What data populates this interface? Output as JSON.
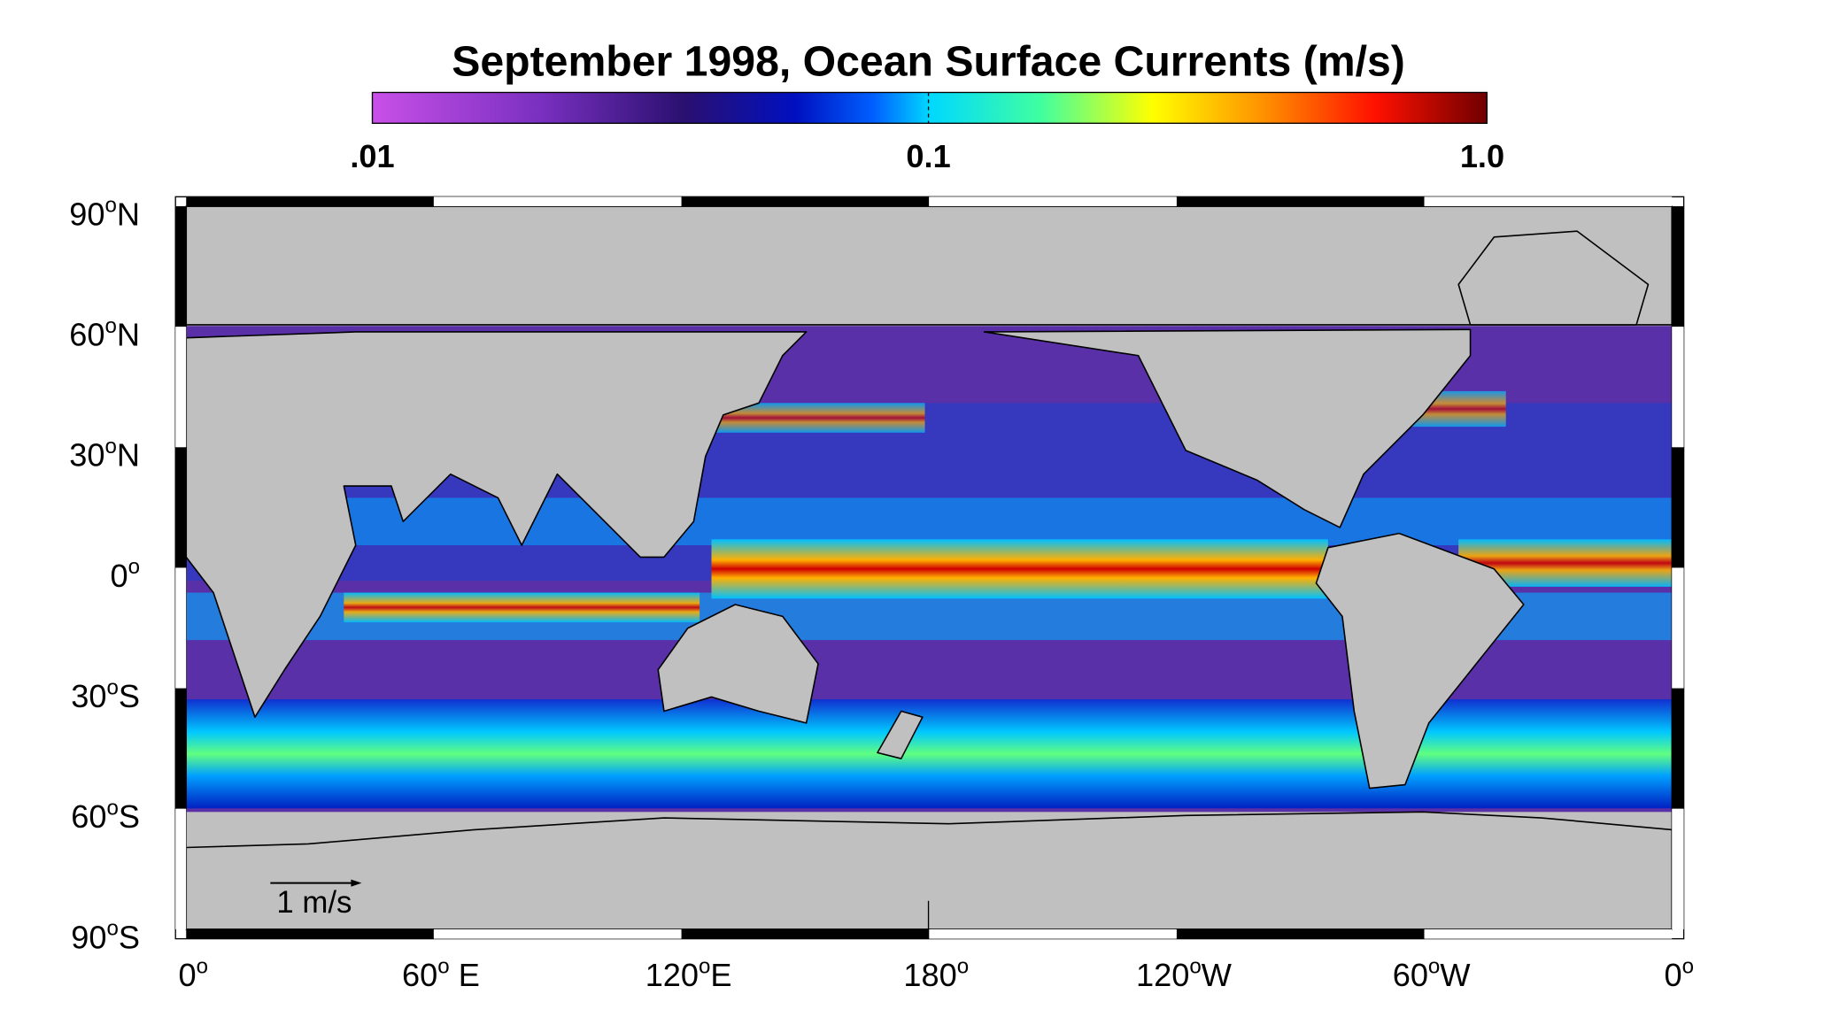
{
  "title": "September 1998, Ocean Surface Currents  (m/s)",
  "colorbar": {
    "ticks": [
      ".01",
      "0.1",
      "1.0"
    ]
  },
  "lat_labels": [
    {
      "num": "90",
      "sup": "o",
      "dir": "N"
    },
    {
      "num": "60",
      "sup": "o",
      "dir": "N"
    },
    {
      "num": "30",
      "sup": "o",
      "dir": "N"
    },
    {
      "num": "0",
      "sup": "o",
      "dir": ""
    },
    {
      "num": "30",
      "sup": "o",
      "dir": "S"
    },
    {
      "num": "60",
      "sup": "o",
      "dir": "S"
    },
    {
      "num": "90",
      "sup": "o",
      "dir": "S"
    }
  ],
  "lon_labels": [
    {
      "num": "0",
      "sup": "o",
      "dir": ""
    },
    {
      "num": "60",
      "sup": "o",
      "dir": " E"
    },
    {
      "num": "120",
      "sup": "o",
      "dir": "E"
    },
    {
      "num": "180",
      "sup": "o",
      "dir": ""
    },
    {
      "num": "120",
      "sup": "o",
      "dir": "W"
    },
    {
      "num": "60",
      "sup": "o",
      "dir": "W"
    },
    {
      "num": "0",
      "sup": "o",
      "dir": ""
    }
  ],
  "scale_label": "1 m/s"
}
